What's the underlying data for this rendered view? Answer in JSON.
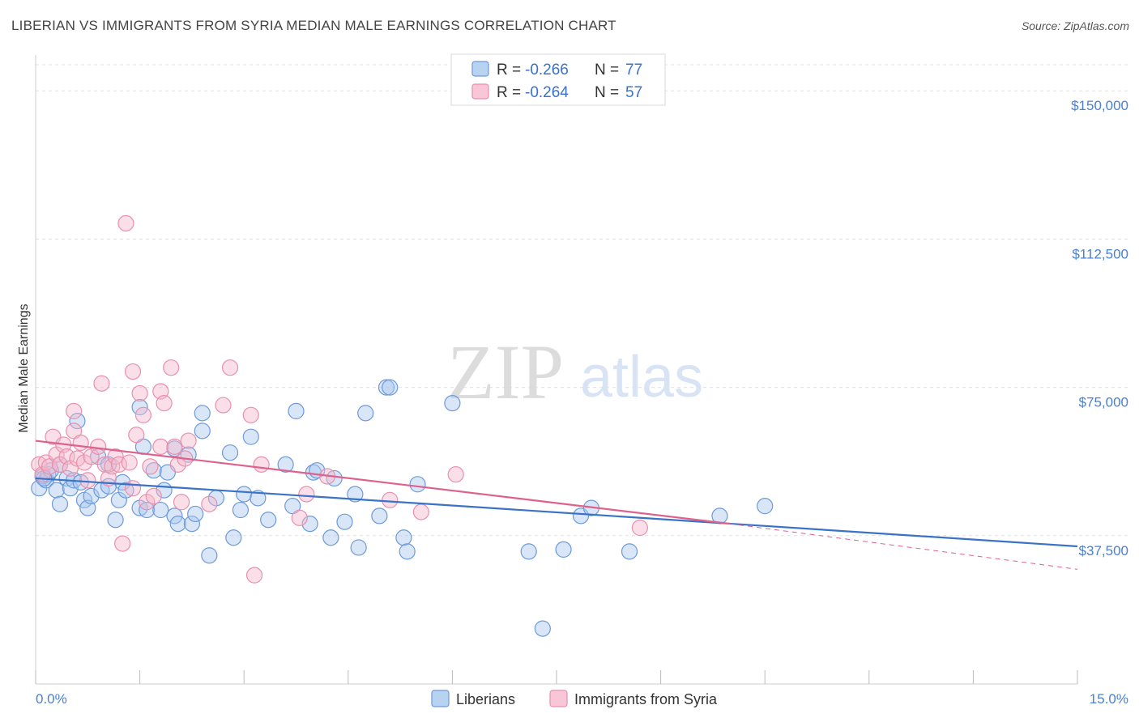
{
  "title": "LIBERIAN VS IMMIGRANTS FROM SYRIA MEDIAN MALE EARNINGS CORRELATION CHART",
  "source": "Source: ZipAtlas.com",
  "watermark": {
    "zip": "ZIP",
    "atlas": "atlas"
  },
  "colors": {
    "blue": "#3a72c8",
    "blue_fill": "#a8c8f0",
    "pink": "#e0608c",
    "pink_fill": "#f5b8cc",
    "tick_text": "#4a7fd0",
    "grid": "#e0e0e0"
  },
  "legend": {
    "rows": [
      {
        "r_label": "R =",
        "r_value": "-0.266",
        "n_label": "N =",
        "n_value": "77"
      },
      {
        "r_label": "R =",
        "r_value": "-0.264",
        "n_label": "N =",
        "n_value": "57"
      }
    ]
  },
  "chart_data": {
    "type": "scatter",
    "title": "LIBERIAN VS IMMIGRANTS FROM SYRIA MEDIAN MALE EARNINGS CORRELATION CHART",
    "xlabel": "",
    "ylabel": "Median Male Earnings",
    "xlim": [
      0,
      15
    ],
    "ylim": [
      0,
      157000
    ],
    "x_tick_labels": [
      "0.0%",
      "15.0%"
    ],
    "y_ticks": [
      37500,
      75000,
      112500,
      150000
    ],
    "y_tick_labels": [
      "$37,500",
      "$75,000",
      "$112,500",
      "$150,000"
    ],
    "grid": true,
    "legend_position": "top-center",
    "series": [
      {
        "name": "Liberians",
        "color": "#3a72c8",
        "trend": {
          "x": [
            0,
            15
          ],
          "y": [
            52000,
            34800
          ]
        },
        "points": [
          [
            0.05,
            49500
          ],
          [
            0.1,
            52500
          ],
          [
            0.15,
            51500
          ],
          [
            0.18,
            53000
          ],
          [
            0.22,
            54000
          ],
          [
            0.3,
            49000
          ],
          [
            0.35,
            55500
          ],
          [
            0.35,
            45500
          ],
          [
            0.45,
            52000
          ],
          [
            0.5,
            49500
          ],
          [
            0.55,
            51500
          ],
          [
            0.6,
            66500
          ],
          [
            0.7,
            46500
          ],
          [
            0.75,
            44500
          ],
          [
            0.8,
            47500
          ],
          [
            0.9,
            57500
          ],
          [
            0.95,
            49000
          ],
          [
            1.05,
            50000
          ],
          [
            1.05,
            55500
          ],
          [
            1.15,
            41500
          ],
          [
            1.2,
            46500
          ],
          [
            1.25,
            51000
          ],
          [
            1.3,
            49000
          ],
          [
            1.5,
            70000
          ],
          [
            1.5,
            44500
          ],
          [
            1.55,
            60000
          ],
          [
            1.6,
            44000
          ],
          [
            1.7,
            54000
          ],
          [
            1.8,
            44000
          ],
          [
            1.85,
            49000
          ],
          [
            1.9,
            53500
          ],
          [
            2.0,
            59500
          ],
          [
            2.0,
            42500
          ],
          [
            2.05,
            40500
          ],
          [
            2.2,
            58000
          ],
          [
            2.25,
            40500
          ],
          [
            2.3,
            43000
          ],
          [
            2.4,
            64000
          ],
          [
            2.4,
            68500
          ],
          [
            2.5,
            32500
          ],
          [
            2.6,
            47000
          ],
          [
            2.8,
            58500
          ],
          [
            2.85,
            37000
          ],
          [
            2.95,
            44000
          ],
          [
            3.0,
            48000
          ],
          [
            3.1,
            62500
          ],
          [
            3.2,
            47000
          ],
          [
            3.35,
            41500
          ],
          [
            3.6,
            55500
          ],
          [
            3.7,
            45000
          ],
          [
            3.75,
            69000
          ],
          [
            3.95,
            40500
          ],
          [
            4.0,
            53500
          ],
          [
            4.05,
            54000
          ],
          [
            4.25,
            37000
          ],
          [
            4.3,
            52000
          ],
          [
            4.45,
            41000
          ],
          [
            4.6,
            48000
          ],
          [
            4.65,
            34500
          ],
          [
            4.75,
            68500
          ],
          [
            4.95,
            42500
          ],
          [
            5.05,
            75000
          ],
          [
            5.1,
            75000
          ],
          [
            5.3,
            37000
          ],
          [
            5.35,
            33500
          ],
          [
            5.5,
            50500
          ],
          [
            6.0,
            71000
          ],
          [
            7.1,
            33500
          ],
          [
            7.3,
            14000
          ],
          [
            7.6,
            34000
          ],
          [
            7.85,
            42500
          ],
          [
            8.0,
            44500
          ],
          [
            8.55,
            33500
          ],
          [
            9.85,
            42500
          ],
          [
            10.5,
            45000
          ],
          [
            0.12,
            52000
          ],
          [
            0.65,
            51000
          ]
        ]
      },
      {
        "name": "Immigrants from Syria",
        "color": "#e0608c",
        "trend": {
          "x": [
            0,
            10.0
          ],
          "y": [
            61500,
            40500
          ]
        },
        "trend_extension": {
          "x": [
            10.0,
            15
          ],
          "y": [
            40500,
            29000
          ]
        },
        "points": [
          [
            0.05,
            55500
          ],
          [
            0.1,
            53000
          ],
          [
            0.15,
            56000
          ],
          [
            0.2,
            55000
          ],
          [
            0.25,
            62500
          ],
          [
            0.3,
            58000
          ],
          [
            0.35,
            55500
          ],
          [
            0.4,
            60500
          ],
          [
            0.45,
            57500
          ],
          [
            0.5,
            54500
          ],
          [
            0.55,
            69000
          ],
          [
            0.55,
            64000
          ],
          [
            0.6,
            57000
          ],
          [
            0.65,
            61000
          ],
          [
            0.7,
            56000
          ],
          [
            0.75,
            51500
          ],
          [
            0.8,
            57500
          ],
          [
            0.9,
            60000
          ],
          [
            0.95,
            76000
          ],
          [
            1.0,
            55500
          ],
          [
            1.05,
            52000
          ],
          [
            1.1,
            55000
          ],
          [
            1.15,
            57500
          ],
          [
            1.2,
            55500
          ],
          [
            1.25,
            35500
          ],
          [
            1.35,
            56000
          ],
          [
            1.4,
            79000
          ],
          [
            1.4,
            49500
          ],
          [
            1.45,
            63000
          ],
          [
            1.5,
            73500
          ],
          [
            1.55,
            68000
          ],
          [
            1.6,
            46000
          ],
          [
            1.65,
            55000
          ],
          [
            1.7,
            47500
          ],
          [
            1.8,
            60000
          ],
          [
            1.8,
            74000
          ],
          [
            1.85,
            71000
          ],
          [
            1.95,
            80000
          ],
          [
            2.0,
            60000
          ],
          [
            2.05,
            55500
          ],
          [
            2.1,
            46000
          ],
          [
            2.15,
            57000
          ],
          [
            2.2,
            61500
          ],
          [
            2.5,
            45500
          ],
          [
            2.7,
            70500
          ],
          [
            2.8,
            80000
          ],
          [
            3.1,
            68000
          ],
          [
            3.15,
            27500
          ],
          [
            3.25,
            55500
          ],
          [
            3.8,
            42000
          ],
          [
            3.9,
            48000
          ],
          [
            4.2,
            52500
          ],
          [
            5.1,
            46500
          ],
          [
            5.55,
            43500
          ],
          [
            6.05,
            53000
          ],
          [
            8.7,
            39500
          ],
          [
            1.3,
            116500
          ]
        ]
      }
    ]
  },
  "bottom_legend": [
    {
      "label": "Liberians"
    },
    {
      "label": "Immigrants from Syria"
    }
  ]
}
